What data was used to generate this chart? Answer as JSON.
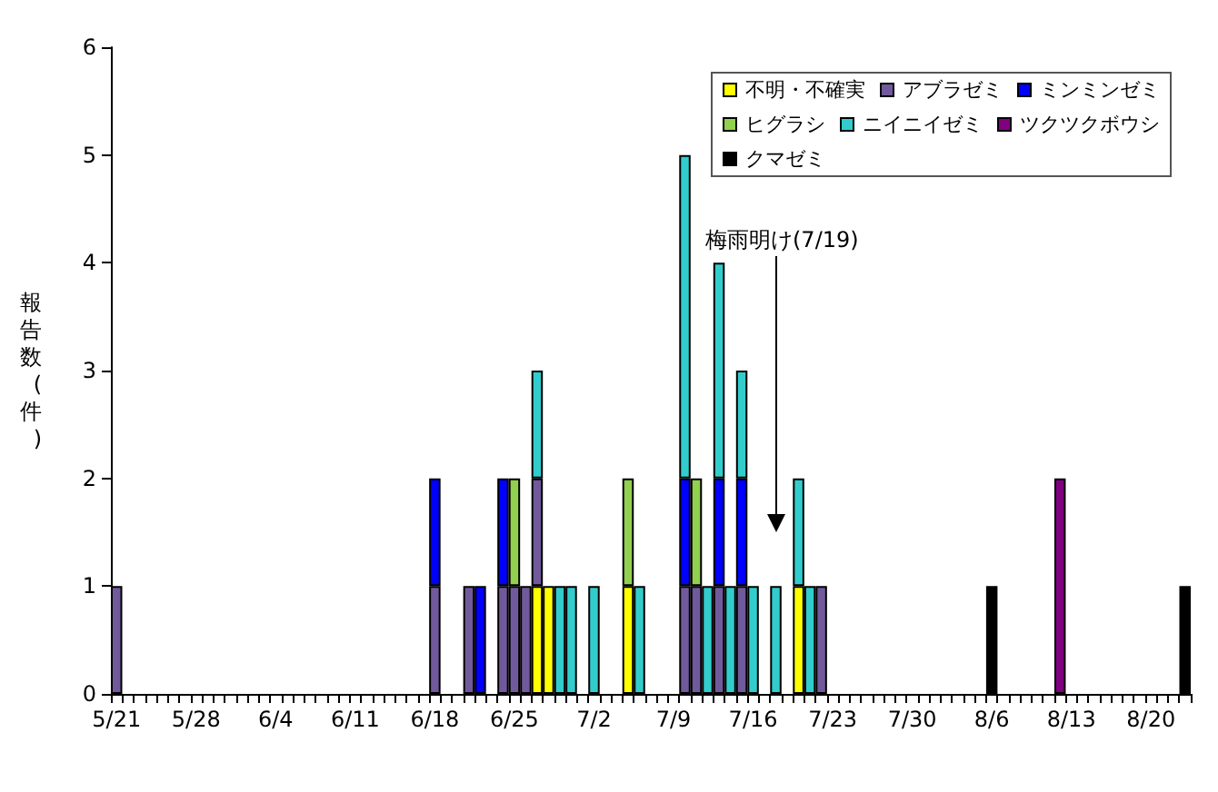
{
  "chart_data": {
    "type": "bar",
    "stacked": true,
    "ylabel": "報告数(件)",
    "categories": [
      "5/21",
      null,
      null,
      null,
      null,
      null,
      null,
      "5/28",
      null,
      null,
      null,
      null,
      null,
      null,
      "6/4",
      null,
      null,
      null,
      null,
      null,
      null,
      "6/11",
      null,
      null,
      null,
      null,
      null,
      null,
      "6/18",
      null,
      null,
      null,
      null,
      null,
      null,
      "6/25",
      null,
      null,
      null,
      null,
      null,
      null,
      "7/2",
      null,
      null,
      null,
      null,
      null,
      null,
      "7/9",
      null,
      null,
      null,
      null,
      null,
      null,
      "7/16",
      null,
      null,
      null,
      null,
      null,
      null,
      "7/23",
      null,
      null,
      null,
      null,
      null,
      null,
      "7/30",
      null,
      null,
      null,
      null,
      null,
      null,
      "8/6",
      null,
      null,
      null,
      null,
      null,
      null,
      "8/13",
      null,
      null,
      null,
      null,
      null,
      null,
      "8/20",
      null,
      null,
      null
    ],
    "series": [
      {
        "name": "不明・不確実",
        "color": "#ffff00",
        "values": [
          null,
          null,
          null,
          null,
          null,
          null,
          null,
          null,
          null,
          null,
          null,
          null,
          null,
          null,
          null,
          null,
          null,
          null,
          null,
          null,
          null,
          null,
          null,
          null,
          null,
          null,
          null,
          null,
          null,
          null,
          null,
          null,
          null,
          null,
          null,
          null,
          null,
          1,
          1,
          null,
          null,
          null,
          null,
          null,
          null,
          1,
          null,
          null,
          null,
          null,
          null,
          null,
          null,
          null,
          null,
          null,
          null,
          null,
          null,
          null,
          1,
          null,
          null,
          null,
          null,
          null,
          null,
          null,
          null,
          null,
          null,
          null,
          null,
          null,
          null,
          null,
          null,
          null,
          null,
          null,
          null,
          null,
          null,
          null,
          null,
          null,
          null,
          null,
          null,
          null,
          null,
          null,
          null,
          null,
          null
        ]
      },
      {
        "name": "アブラゼミ",
        "color": "#715a9b",
        "values": [
          1,
          null,
          null,
          null,
          null,
          null,
          null,
          null,
          null,
          null,
          null,
          null,
          null,
          null,
          null,
          null,
          null,
          null,
          null,
          null,
          null,
          null,
          null,
          null,
          null,
          null,
          null,
          null,
          1,
          null,
          null,
          1,
          null,
          null,
          1,
          1,
          1,
          1,
          null,
          null,
          null,
          null,
          null,
          null,
          null,
          null,
          null,
          null,
          null,
          null,
          1,
          1,
          null,
          1,
          null,
          1,
          null,
          null,
          null,
          null,
          null,
          null,
          1,
          null,
          null,
          null,
          null,
          null,
          null,
          null,
          null,
          null,
          null,
          null,
          null,
          null,
          null,
          null,
          null,
          null,
          null,
          null,
          null,
          null,
          null,
          null,
          null,
          null,
          null,
          null,
          null,
          null,
          null,
          null,
          null
        ]
      },
      {
        "name": "ミンミンゼミ",
        "color": "#0000ff",
        "values": [
          null,
          null,
          null,
          null,
          null,
          null,
          null,
          null,
          null,
          null,
          null,
          null,
          null,
          null,
          null,
          null,
          null,
          null,
          null,
          null,
          null,
          null,
          null,
          null,
          null,
          null,
          null,
          null,
          1,
          null,
          null,
          null,
          1,
          null,
          1,
          null,
          null,
          null,
          null,
          null,
          null,
          null,
          null,
          null,
          null,
          null,
          null,
          null,
          null,
          null,
          1,
          null,
          null,
          1,
          null,
          1,
          null,
          null,
          null,
          null,
          null,
          null,
          null,
          null,
          null,
          null,
          null,
          null,
          null,
          null,
          null,
          null,
          null,
          null,
          null,
          null,
          null,
          null,
          null,
          null,
          null,
          null,
          null,
          null,
          null,
          null,
          null,
          null,
          null,
          null,
          null,
          null,
          null,
          null,
          null
        ]
      },
      {
        "name": "ヒグラシ",
        "color": "#92d050",
        "values": [
          null,
          null,
          null,
          null,
          null,
          null,
          null,
          null,
          null,
          null,
          null,
          null,
          null,
          null,
          null,
          null,
          null,
          null,
          null,
          null,
          null,
          null,
          null,
          null,
          null,
          null,
          null,
          null,
          null,
          null,
          null,
          null,
          null,
          null,
          null,
          1,
          null,
          null,
          null,
          null,
          null,
          null,
          null,
          null,
          null,
          1,
          null,
          null,
          null,
          null,
          null,
          1,
          null,
          null,
          null,
          null,
          null,
          null,
          null,
          null,
          null,
          null,
          null,
          null,
          null,
          null,
          null,
          null,
          null,
          null,
          null,
          null,
          null,
          null,
          null,
          null,
          null,
          null,
          null,
          null,
          null,
          null,
          null,
          null,
          null,
          null,
          null,
          null,
          null,
          null,
          null,
          null,
          null,
          null,
          null
        ]
      },
      {
        "name": "ニイニイゼミ",
        "color": "#33cccc",
        "values": [
          null,
          null,
          null,
          null,
          null,
          null,
          null,
          null,
          null,
          null,
          null,
          null,
          null,
          null,
          null,
          null,
          null,
          null,
          null,
          null,
          null,
          null,
          null,
          null,
          null,
          null,
          null,
          null,
          null,
          null,
          null,
          null,
          null,
          null,
          null,
          null,
          null,
          1,
          null,
          1,
          1,
          null,
          1,
          null,
          null,
          null,
          1,
          null,
          null,
          null,
          3,
          null,
          1,
          2,
          1,
          1,
          1,
          null,
          1,
          null,
          1,
          1,
          null,
          null,
          null,
          null,
          null,
          null,
          null,
          null,
          null,
          null,
          null,
          null,
          null,
          null,
          null,
          null,
          null,
          null,
          null,
          null,
          null,
          null,
          null,
          null,
          null,
          null,
          null,
          null,
          null,
          null,
          null,
          null,
          null
        ]
      },
      {
        "name": "ツクツクボウシ",
        "color": "#800080",
        "values": [
          null,
          null,
          null,
          null,
          null,
          null,
          null,
          null,
          null,
          null,
          null,
          null,
          null,
          null,
          null,
          null,
          null,
          null,
          null,
          null,
          null,
          null,
          null,
          null,
          null,
          null,
          null,
          null,
          null,
          null,
          null,
          null,
          null,
          null,
          null,
          null,
          null,
          null,
          null,
          null,
          null,
          null,
          null,
          null,
          null,
          null,
          null,
          null,
          null,
          null,
          null,
          null,
          null,
          null,
          null,
          null,
          null,
          null,
          null,
          null,
          null,
          null,
          null,
          null,
          null,
          null,
          null,
          null,
          null,
          null,
          null,
          null,
          null,
          null,
          null,
          null,
          null,
          null,
          null,
          null,
          null,
          null,
          null,
          2,
          null,
          null,
          null,
          null,
          null,
          null,
          null,
          null,
          null,
          null,
          null
        ]
      },
      {
        "name": "クマゼミ",
        "color": "#000000",
        "values": [
          null,
          null,
          null,
          null,
          null,
          null,
          null,
          null,
          null,
          null,
          null,
          null,
          null,
          null,
          null,
          null,
          null,
          null,
          null,
          null,
          null,
          null,
          null,
          null,
          null,
          null,
          null,
          null,
          null,
          null,
          null,
          null,
          null,
          null,
          null,
          null,
          null,
          null,
          null,
          null,
          null,
          null,
          null,
          null,
          null,
          null,
          null,
          null,
          null,
          null,
          null,
          null,
          null,
          null,
          null,
          null,
          null,
          null,
          null,
          null,
          null,
          null,
          null,
          null,
          null,
          null,
          null,
          null,
          null,
          null,
          null,
          null,
          null,
          null,
          null,
          null,
          null,
          1,
          null,
          null,
          null,
          null,
          null,
          null,
          null,
          null,
          null,
          null,
          null,
          null,
          null,
          null,
          null,
          null,
          1
        ]
      }
    ],
    "ylim": [
      0,
      6
    ],
    "yticks": [
      0,
      1,
      2,
      3,
      4,
      5,
      6
    ],
    "legend": "top right",
    "annotations": [
      "梅雨明け(7/19)"
    ]
  }
}
